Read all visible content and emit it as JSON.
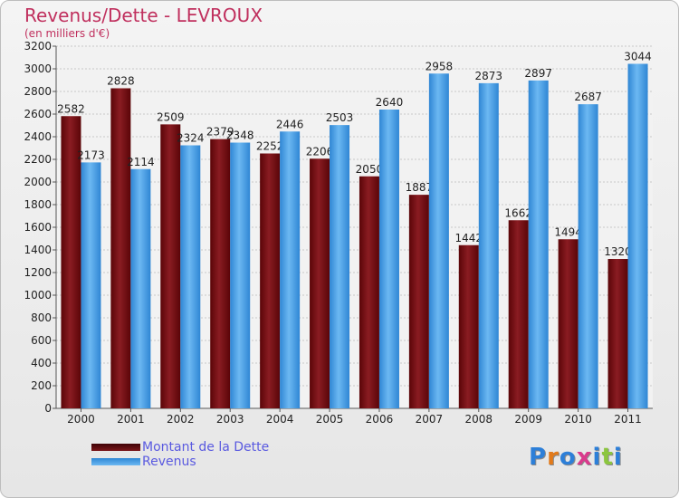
{
  "chart_data": {
    "type": "bar",
    "title": "Revenus/Dette - LEVROUX",
    "subtitle": "(en milliers d'€)",
    "categories": [
      "2000",
      "2001",
      "2002",
      "2003",
      "2004",
      "2005",
      "2006",
      "2007",
      "2008",
      "2009",
      "2010",
      "2011"
    ],
    "series": [
      {
        "name": "Montant de la Dette",
        "color": "#6e0f12",
        "values": [
          2582,
          2828,
          2509,
          2379,
          2252,
          2206,
          2050,
          1887,
          1442,
          1662,
          1494,
          1320
        ]
      },
      {
        "name": "Revenus",
        "color": "#4aa0e6",
        "values": [
          2173,
          2114,
          2324,
          2348,
          2446,
          2503,
          2640,
          2958,
          2873,
          2897,
          2687,
          3044
        ]
      }
    ],
    "ylim": [
      0,
      3200
    ],
    "yticks": [
      0,
      200,
      400,
      600,
      800,
      1000,
      1200,
      1400,
      1600,
      1800,
      2000,
      2200,
      2400,
      2600,
      2800,
      3000,
      3200
    ],
    "grid": true,
    "legend_position": "bottom-left"
  },
  "logo": {
    "letters": [
      "P",
      "r",
      "o",
      "x",
      "i",
      "t",
      "i"
    ],
    "colors": [
      "#2d7fd8",
      "#e27a1a",
      "#2d7fd8",
      "#d93a8c",
      "#2d7fd8",
      "#8cc63f",
      "#2d7fd8"
    ]
  }
}
